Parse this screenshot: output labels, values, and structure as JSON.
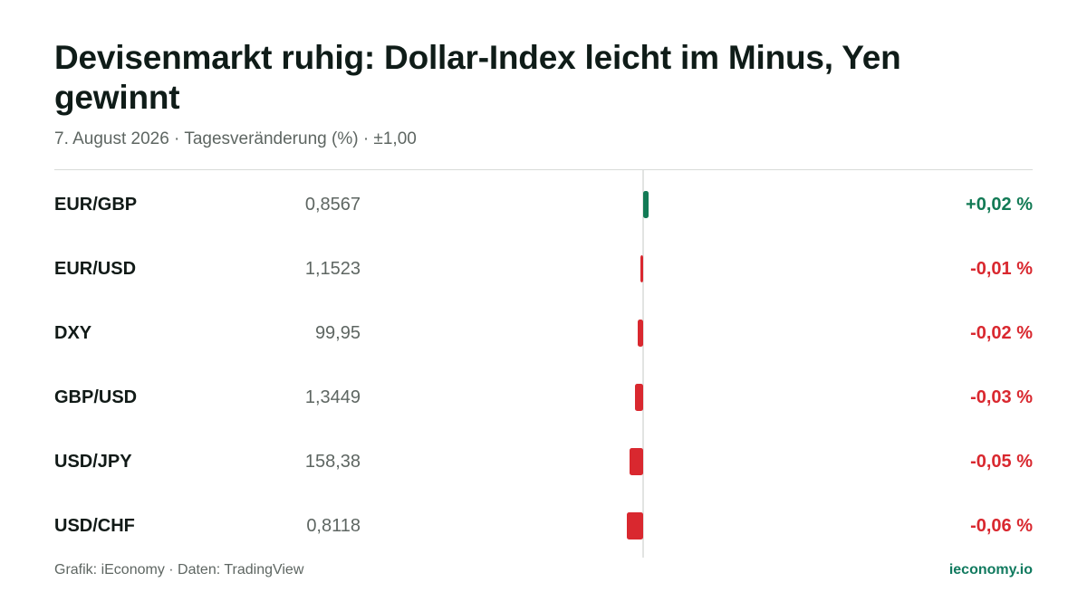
{
  "header": {
    "title": "Devisenmarkt ruhig: Dollar-Index leicht im Minus, Yen gewinnt",
    "subtitle": "7. August 2026 · Tagesveränderung (%) · ±1,00"
  },
  "footer": {
    "source": "Grafik: iEconomy · Daten: TradingView",
    "brand": "ieconomy.io"
  },
  "colors": {
    "positive": "#127a55",
    "negative": "#d9282f",
    "axis": "#d8dbd9",
    "brand": "#117a5f"
  },
  "chart_data": {
    "type": "bar",
    "orientation": "horizontal",
    "categories": [
      "EUR/GBP",
      "EUR/USD",
      "DXY",
      "GBP/USD",
      "USD/JPY",
      "USD/CHF"
    ],
    "prices": [
      "0,8567",
      "1,1523",
      "99,95",
      "1,3449",
      "158,38",
      "0,8118"
    ],
    "values": [
      0.02,
      -0.01,
      -0.02,
      -0.03,
      -0.05,
      -0.06
    ],
    "value_labels": [
      "+0,02 %",
      "-0,01 %",
      "-0,02 %",
      "-0,03 %",
      "-0,05 %",
      "-0,06 %"
    ],
    "xlim": [
      -1,
      1
    ],
    "unit": "%",
    "grid": false
  }
}
